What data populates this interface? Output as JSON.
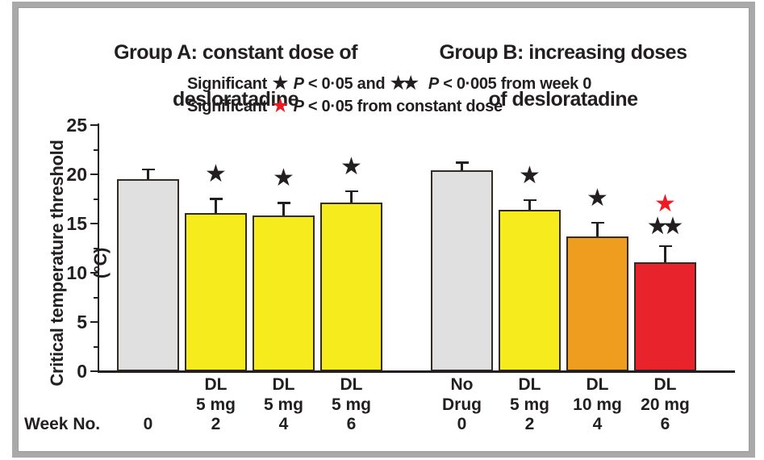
{
  "frame": {
    "border_color": "#a9a9a9"
  },
  "chart_data": {
    "type": "bar",
    "ylabel": "Critical temperature threshold (°C)",
    "ylabel_line1": "Critical temperature threshold",
    "ylabel_line2": "(°C)",
    "ylim": [
      0,
      25
    ],
    "yticks": [
      0,
      5,
      10,
      15,
      20,
      25
    ],
    "minor_ticks": [
      2.5,
      7.5,
      12.5,
      17.5,
      22.5
    ],
    "grid": false,
    "week_axis_label": "Week No.",
    "star_char": "★",
    "groups": [
      {
        "id": "a",
        "title_line1": "Group A: constant dose of",
        "title_line2": "desloratadine",
        "bars": [
          {
            "week": "0",
            "drug_line1": "",
            "drug_line2": "",
            "value": 19.5,
            "error": 1.1,
            "color": "#e0e0e0",
            "black_stars": 0,
            "red_star": false
          },
          {
            "week": "2",
            "drug_line1": "DL",
            "drug_line2": "5 mg",
            "value": 16.1,
            "error": 1.5,
            "color": "#f6eb1c",
            "black_stars": 1,
            "red_star": false
          },
          {
            "week": "4",
            "drug_line1": "DL",
            "drug_line2": "5 mg",
            "value": 15.8,
            "error": 1.4,
            "color": "#f6eb1c",
            "black_stars": 1,
            "red_star": false
          },
          {
            "week": "6",
            "drug_line1": "DL",
            "drug_line2": "5 mg",
            "value": 17.1,
            "error": 1.3,
            "color": "#f6eb1c",
            "black_stars": 1,
            "red_star": false
          }
        ]
      },
      {
        "id": "b",
        "title_line1": "Group B: increasing doses",
        "title_line2": "of  desloratadine",
        "bars": [
          {
            "week": "0",
            "drug_line1": "No",
            "drug_line2": "Drug",
            "value": 20.4,
            "error": 0.9,
            "color": "#e0e0e0",
            "black_stars": 0,
            "red_star": false
          },
          {
            "week": "2",
            "drug_line1": "DL",
            "drug_line2": "5 mg",
            "value": 16.4,
            "error": 1.1,
            "color": "#f6eb1c",
            "black_stars": 1,
            "red_star": false
          },
          {
            "week": "4",
            "drug_line1": "DL",
            "drug_line2": "10 mg",
            "value": 13.7,
            "error": 1.5,
            "color": "#ef9d1e",
            "black_stars": 1,
            "red_star": false
          },
          {
            "week": "6",
            "drug_line1": "DL",
            "drug_line2": "20 mg",
            "value": 11.1,
            "error": 1.7,
            "color": "#e9232b",
            "black_stars": 2,
            "red_star": true
          }
        ]
      }
    ],
    "legend": {
      "line1": {
        "label": "Significant",
        "star1": "★",
        "p1": "P",
        "cond1": " < 0·05 and",
        "star2": "★★",
        "p2": "P",
        "cond2": " < 0·005 from week 0"
      },
      "line2": {
        "label": "Significant",
        "star": "★",
        "p": "P",
        "cond": " < 0·05 from constant dose"
      }
    },
    "colors": {
      "black_star": "#231f20",
      "red_star": "#ed1c24",
      "axis": "#231f20",
      "bar_border": "#332a24",
      "gray_bar": "#e0e0e0",
      "yellow_bar": "#f6eb1c",
      "orange_bar": "#ef9d1e",
      "red_bar": "#e9232b"
    }
  }
}
